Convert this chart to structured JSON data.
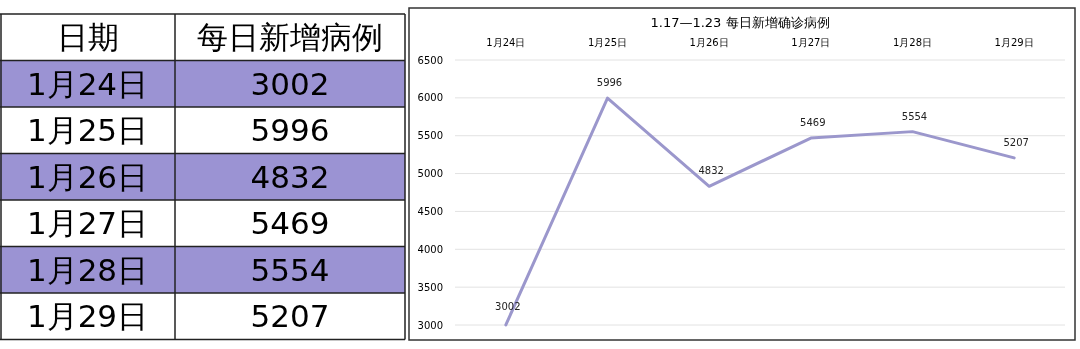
{
  "chart_data": [
    {
      "type": "other",
      "categories": [
        "1月24日",
        "1月25日",
        "1月26日",
        "1月27日",
        "1月28日",
        "1月29日"
      ],
      "values": [
        3002,
        5996,
        4832,
        5469,
        5554,
        5207
      ],
      "data_labels": true,
      "annotations": [
        "日期",
        "每日新增病例"
      ]
    },
    {
      "type": "line",
      "title": "1.17—1.23 每日新增确诊病例",
      "categories": [
        "1月24日",
        "1月25日",
        "1月26日",
        "1月27日",
        "1月28日",
        "1月29日"
      ],
      "series": [
        {
          "color": "#9b97cc",
          "values": [
            3002,
            5996,
            4832,
            5469,
            5554,
            5207
          ]
        }
      ],
      "ylim": [
        3000,
        6500
      ],
      "yticks": [
        3000,
        3500,
        4000,
        4500,
        5000,
        5500,
        6000,
        6500
      ],
      "grid": "y",
      "marker": "none",
      "line_style": "solid",
      "data_labels": true
    }
  ]
}
